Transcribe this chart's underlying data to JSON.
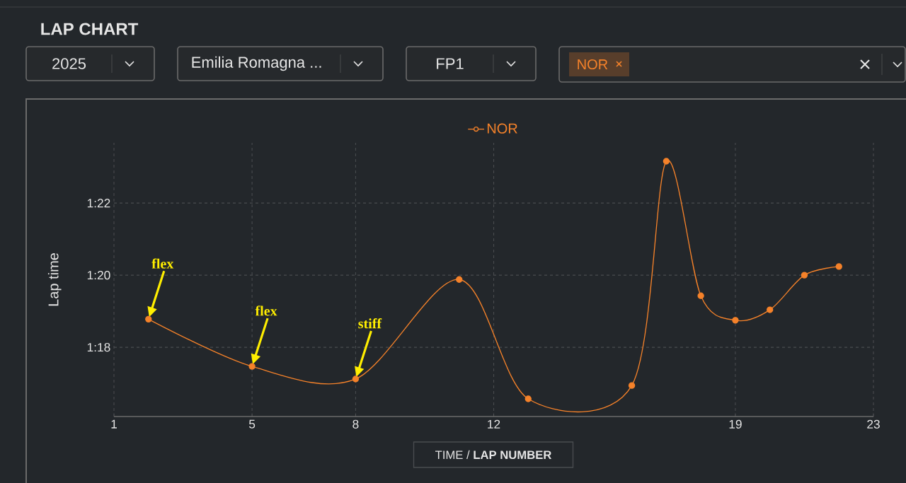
{
  "chart_data": {
    "type": "line",
    "title": "LAP CHART",
    "xlabel": "TIME / **LAP NUMBER**",
    "ylabel": "Lap time",
    "x": [
      2,
      5,
      8,
      11,
      13,
      16,
      17,
      18,
      19,
      20,
      21,
      22
    ],
    "series": [
      {
        "name": "NOR",
        "color": "#f5822a",
        "values": [
          78.78,
          77.47,
          77.12,
          79.88,
          76.57,
          76.94,
          83.16,
          79.43,
          78.75,
          79.04,
          80.0,
          80.24
        ]
      }
    ],
    "xlim": [
      1,
      23
    ],
    "ylim": [
      76.08,
      83.67
    ],
    "xticks": [
      1,
      5,
      8,
      12,
      19,
      23
    ],
    "yticks": [
      {
        "value": 78,
        "label": "1:18"
      },
      {
        "value": 80,
        "label": "1:20"
      },
      {
        "value": 82,
        "label": "1:22"
      }
    ],
    "grid": true,
    "legend": "top",
    "marker": "circle",
    "line_style": "solid",
    "annotations": [
      "2025",
      "Emilia Romagna ...",
      "FP1",
      "NOR",
      "flex",
      "flex",
      "stiff"
    ]
  }
}
